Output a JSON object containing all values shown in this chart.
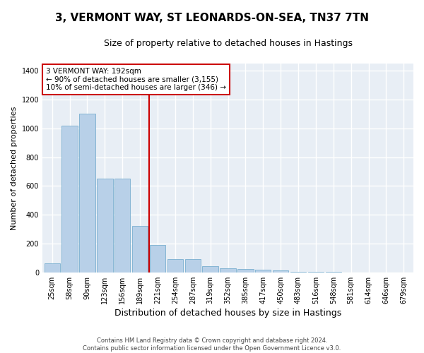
{
  "title": "3, VERMONT WAY, ST LEONARDS-ON-SEA, TN37 7TN",
  "subtitle": "Size of property relative to detached houses in Hastings",
  "xlabel": "Distribution of detached houses by size in Hastings",
  "ylabel": "Number of detached properties",
  "bin_labels": [
    "25sqm",
    "58sqm",
    "90sqm",
    "123sqm",
    "156sqm",
    "189sqm",
    "221sqm",
    "254sqm",
    "287sqm",
    "319sqm",
    "352sqm",
    "385sqm",
    "417sqm",
    "450sqm",
    "483sqm",
    "516sqm",
    "548sqm",
    "581sqm",
    "614sqm",
    "646sqm",
    "679sqm"
  ],
  "bar_values": [
    65,
    1020,
    1100,
    650,
    650,
    325,
    190,
    90,
    90,
    45,
    30,
    25,
    20,
    15,
    5,
    3,
    2,
    1,
    1,
    0,
    0
  ],
  "bar_color": "#b8d0e8",
  "bar_edge_color": "#7aafd0",
  "vline_x": 5.52,
  "vline_color": "#cc0000",
  "annotation_text": "3 VERMONT WAY: 192sqm\n← 90% of detached houses are smaller (3,155)\n10% of semi-detached houses are larger (346) →",
  "annotation_box_color": "#ffffff",
  "annotation_box_edge_color": "#cc0000",
  "ylim": [
    0,
    1450
  ],
  "yticks": [
    0,
    200,
    400,
    600,
    800,
    1000,
    1200,
    1400
  ],
  "footnote": "Contains HM Land Registry data © Crown copyright and database right 2024.\nContains public sector information licensed under the Open Government Licence v3.0.",
  "fig_bg_color": "#ffffff",
  "plot_bg_color": "#e8eef5",
  "grid_color": "#ffffff",
  "title_fontsize": 11,
  "subtitle_fontsize": 9,
  "xlabel_fontsize": 9,
  "ylabel_fontsize": 8,
  "tick_fontsize": 7,
  "annot_fontsize": 7.5,
  "footnote_fontsize": 6
}
